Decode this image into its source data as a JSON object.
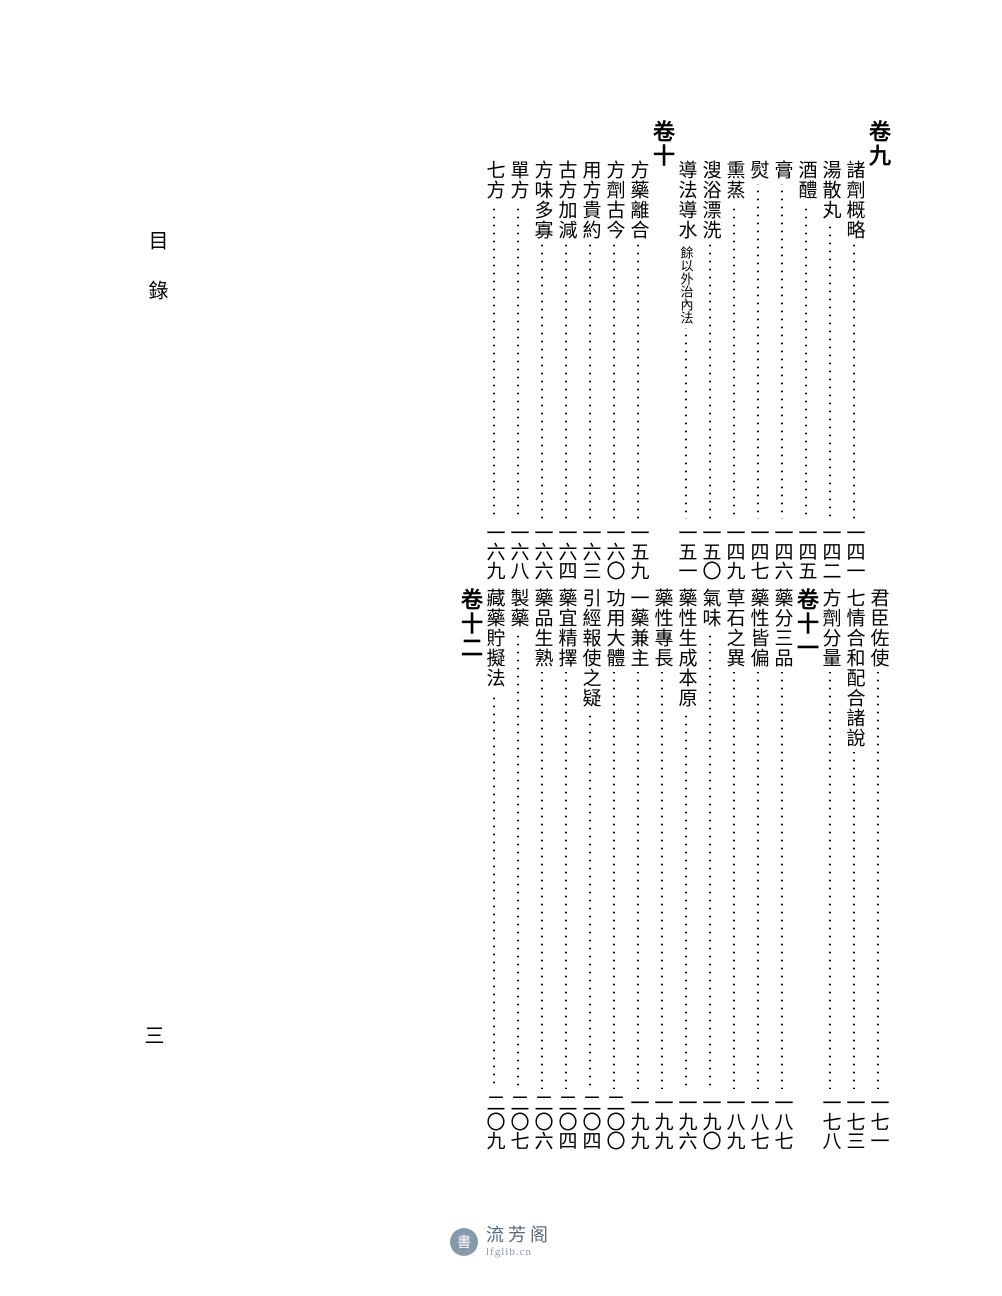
{
  "side_label": "目錄",
  "page_number": "三",
  "watermark": {
    "cn": "流芳阁",
    "en": "lfglib.cn",
    "icon": "書"
  },
  "columns": [
    {
      "type": "title",
      "top": "卷九",
      "top_fs": 22,
      "bottom_label": "君臣佐使",
      "bottom_page": "一七一"
    },
    {
      "type": "entry",
      "top_label": "諸劑概略",
      "top_page": "一四一",
      "bottom_label": "七情合和配合諸說",
      "bottom_page": "一七三"
    },
    {
      "type": "entry",
      "top_label": "湯散丸",
      "top_page": "一四二",
      "bottom_label": "方劑分量",
      "bottom_page": "一七八"
    },
    {
      "type": "entry",
      "top_label": "酒醴",
      "top_page": "一四五",
      "bottom_type": "title",
      "bottom_title": "卷十一"
    },
    {
      "type": "entry",
      "top_label": "膏",
      "top_page": "一四六",
      "bottom_label": "藥分三品",
      "bottom_page": "一八七"
    },
    {
      "type": "entry",
      "top_label": "熨",
      "top_page": "一四七",
      "bottom_label": "藥性皆偏",
      "bottom_page": "一八七"
    },
    {
      "type": "entry",
      "top_label": "熏蒸",
      "top_page": "一四九",
      "bottom_label": "草石之異",
      "bottom_page": "一八九"
    },
    {
      "type": "entry",
      "top_label": "溲浴漂洗",
      "top_page": "一五〇",
      "bottom_label": "氣味",
      "bottom_page": "一九〇"
    },
    {
      "type": "entry",
      "top_label": "導法導水",
      "top_note": "餘以外治內法",
      "top_page": "一五一",
      "bottom_label": "藥性生成本原",
      "bottom_page": "一九六"
    },
    {
      "type": "title",
      "top": "卷十",
      "bottom_label": "藥性專長",
      "bottom_page": "一九九"
    },
    {
      "type": "entry",
      "top_label": "方藥離合",
      "top_page": "一五九",
      "bottom_label": "一藥兼主",
      "bottom_page": "一九九"
    },
    {
      "type": "entry",
      "top_label": "方劑古今",
      "top_page": "一六〇",
      "bottom_label": "功用大體",
      "bottom_page": "二〇〇"
    },
    {
      "type": "entry",
      "top_label": "用方貴約",
      "top_page": "一六三",
      "bottom_label": "引經報使之疑",
      "bottom_page": "二〇四"
    },
    {
      "type": "entry",
      "top_label": "古方加減",
      "top_page": "一六四",
      "bottom_label": "藥宜精擇",
      "bottom_page": "二〇四"
    },
    {
      "type": "entry",
      "top_label": "方味多寡",
      "top_page": "一六六",
      "bottom_label": "藥品生熟",
      "bottom_page": "二〇六"
    },
    {
      "type": "entry",
      "top_label": "單方",
      "top_page": "一六八",
      "bottom_label": "製藥",
      "bottom_page": "二〇七"
    },
    {
      "type": "entry",
      "top_label": "七方",
      "top_page": "一六九",
      "bottom_label": "藏藥貯擬法",
      "bottom_page": "二〇九"
    },
    {
      "type": "none",
      "bottom_type": "title",
      "bottom_title": "卷十二"
    }
  ]
}
